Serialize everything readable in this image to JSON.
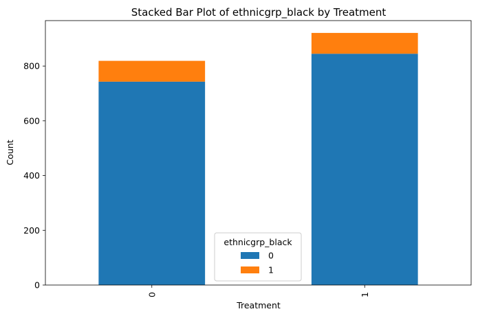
{
  "chart_data": {
    "type": "bar",
    "stacked": true,
    "title": "Stacked Bar Plot of ethnicgrp_black by Treatment",
    "xlabel": "Treatment",
    "ylabel": "Count",
    "categories": [
      "0",
      "1"
    ],
    "series": [
      {
        "name": "0",
        "values": [
          743,
          845
        ],
        "color": "#1f77b4"
      },
      {
        "name": "1",
        "values": [
          76,
          76
        ],
        "color": "#ff7f0e"
      }
    ],
    "yticks": [
      0,
      200,
      400,
      600,
      800
    ],
    "ylim": [
      0,
      966
    ],
    "grid": false,
    "legend": {
      "title": "ethnicgrp_black",
      "position": "bottom-center"
    }
  }
}
